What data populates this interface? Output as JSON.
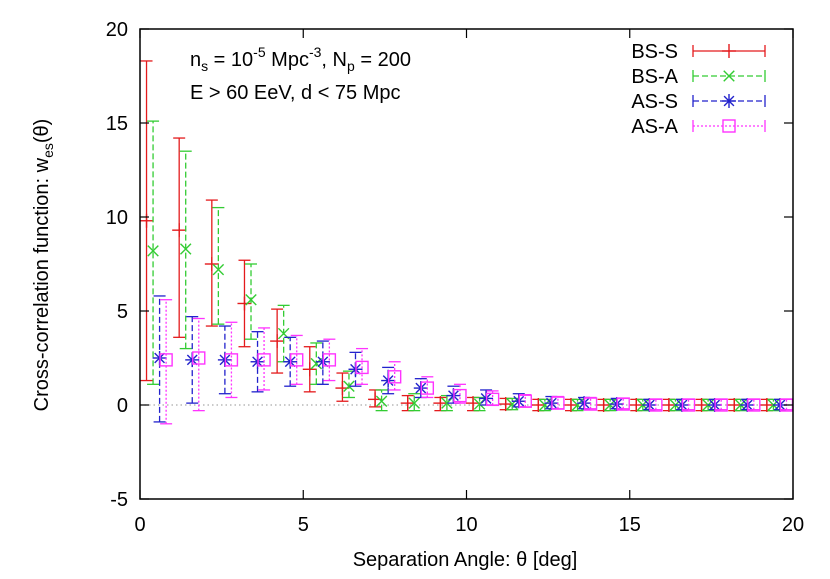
{
  "chart_data": {
    "type": "scatter",
    "xlabel": "Separation Angle: θ [deg]",
    "ylabel": "Cross-correlation function: w_es(θ)",
    "xlim": [
      0,
      20
    ],
    "ylim": [
      -5,
      20
    ],
    "x_ticks": [
      0,
      5,
      10,
      15,
      20
    ],
    "y_ticks": [
      -5,
      0,
      5,
      10,
      15,
      20
    ],
    "grid": false,
    "legend_position": "top-right",
    "annotations": [
      "n_s = 10^-5 Mpc^-3, N_p = 200",
      "E > 60 EeV, d < 75 Mpc"
    ],
    "reference_line": {
      "y": 0,
      "style": "dotted",
      "color": "#aaaaaa"
    },
    "series": [
      {
        "name": "BS-S",
        "color": "#e41a1c",
        "marker": "plus",
        "line": "solid",
        "points": [
          {
            "x": 0.2,
            "y": 9.8,
            "lo": 1.3,
            "hi": 18.3
          },
          {
            "x": 1.2,
            "y": 9.3,
            "lo": 3.6,
            "hi": 14.2
          },
          {
            "x": 2.2,
            "y": 7.5,
            "lo": 4.2,
            "hi": 10.9
          },
          {
            "x": 3.2,
            "y": 5.4,
            "lo": 3.1,
            "hi": 7.7
          },
          {
            "x": 4.2,
            "y": 3.4,
            "lo": 1.7,
            "hi": 5.1
          },
          {
            "x": 5.2,
            "y": 1.9,
            "lo": 0.7,
            "hi": 3.1
          },
          {
            "x": 6.2,
            "y": 0.9,
            "lo": 0.2,
            "hi": 1.7
          },
          {
            "x": 7.2,
            "y": 0.3,
            "lo": -0.1,
            "hi": 0.8
          },
          {
            "x": 8.2,
            "y": 0.1,
            "lo": -0.3,
            "hi": 0.5
          },
          {
            "x": 9.2,
            "y": 0.1,
            "lo": -0.3,
            "hi": 0.4
          },
          {
            "x": 10.2,
            "y": 0.1,
            "lo": -0.3,
            "hi": 0.4
          },
          {
            "x": 11.2,
            "y": 0.05,
            "lo": -0.25,
            "hi": 0.35
          },
          {
            "x": 12.2,
            "y": 0.0,
            "lo": -0.3,
            "hi": 0.3
          },
          {
            "x": 13.2,
            "y": 0.0,
            "lo": -0.3,
            "hi": 0.3
          },
          {
            "x": 14.2,
            "y": 0.0,
            "lo": -0.3,
            "hi": 0.3
          },
          {
            "x": 15.2,
            "y": 0.0,
            "lo": -0.3,
            "hi": 0.3
          },
          {
            "x": 16.2,
            "y": 0.0,
            "lo": -0.3,
            "hi": 0.3
          },
          {
            "x": 17.2,
            "y": 0.0,
            "lo": -0.3,
            "hi": 0.3
          },
          {
            "x": 18.2,
            "y": 0.0,
            "lo": -0.3,
            "hi": 0.3
          },
          {
            "x": 19.2,
            "y": 0.0,
            "lo": -0.3,
            "hi": 0.3
          }
        ]
      },
      {
        "name": "BS-A",
        "color": "#33cc33",
        "marker": "cross",
        "line": "dashed",
        "points": [
          {
            "x": 0.4,
            "y": 8.2,
            "lo": 1.1,
            "hi": 15.1
          },
          {
            "x": 1.4,
            "y": 8.3,
            "lo": 3.0,
            "hi": 13.5
          },
          {
            "x": 2.4,
            "y": 7.2,
            "lo": 4.3,
            "hi": 10.5
          },
          {
            "x": 3.4,
            "y": 5.6,
            "lo": 3.5,
            "hi": 7.5
          },
          {
            "x": 4.4,
            "y": 3.8,
            "lo": 2.3,
            "hi": 5.3
          },
          {
            "x": 5.4,
            "y": 2.2,
            "lo": 1.1,
            "hi": 3.3
          },
          {
            "x": 6.4,
            "y": 1.0,
            "lo": 0.4,
            "hi": 1.8
          },
          {
            "x": 7.4,
            "y": 0.2,
            "lo": -0.3,
            "hi": 0.8
          },
          {
            "x": 8.4,
            "y": 0.1,
            "lo": -0.3,
            "hi": 0.6
          },
          {
            "x": 9.4,
            "y": 0.1,
            "lo": -0.3,
            "hi": 0.5
          },
          {
            "x": 10.4,
            "y": 0.05,
            "lo": -0.3,
            "hi": 0.4
          },
          {
            "x": 11.4,
            "y": 0.05,
            "lo": -0.25,
            "hi": 0.35
          },
          {
            "x": 12.4,
            "y": 0.0,
            "lo": -0.3,
            "hi": 0.3
          },
          {
            "x": 13.4,
            "y": 0.0,
            "lo": -0.3,
            "hi": 0.3
          },
          {
            "x": 14.4,
            "y": 0.0,
            "lo": -0.3,
            "hi": 0.3
          },
          {
            "x": 15.4,
            "y": 0.0,
            "lo": -0.3,
            "hi": 0.3
          },
          {
            "x": 16.4,
            "y": 0.0,
            "lo": -0.3,
            "hi": 0.3
          },
          {
            "x": 17.4,
            "y": 0.0,
            "lo": -0.3,
            "hi": 0.3
          },
          {
            "x": 18.4,
            "y": 0.0,
            "lo": -0.3,
            "hi": 0.3
          },
          {
            "x": 19.4,
            "y": 0.0,
            "lo": -0.3,
            "hi": 0.3
          }
        ]
      },
      {
        "name": "AS-S",
        "color": "#2222cc",
        "marker": "star",
        "line": "dashed",
        "points": [
          {
            "x": 0.6,
            "y": 2.5,
            "lo": -0.9,
            "hi": 5.8
          },
          {
            "x": 1.6,
            "y": 2.4,
            "lo": 0.1,
            "hi": 4.7
          },
          {
            "x": 2.6,
            "y": 2.4,
            "lo": 0.6,
            "hi": 4.2
          },
          {
            "x": 3.6,
            "y": 2.3,
            "lo": 0.7,
            "hi": 3.9
          },
          {
            "x": 4.6,
            "y": 2.3,
            "lo": 1.0,
            "hi": 3.6
          },
          {
            "x": 5.6,
            "y": 2.3,
            "lo": 1.1,
            "hi": 3.4
          },
          {
            "x": 6.6,
            "y": 1.9,
            "lo": 1.0,
            "hi": 2.8
          },
          {
            "x": 7.6,
            "y": 1.3,
            "lo": 0.6,
            "hi": 2.0
          },
          {
            "x": 8.6,
            "y": 0.9,
            "lo": 0.4,
            "hi": 1.4
          },
          {
            "x": 9.6,
            "y": 0.5,
            "lo": 0.1,
            "hi": 1.0
          },
          {
            "x": 10.6,
            "y": 0.35,
            "lo": 0.0,
            "hi": 0.8
          },
          {
            "x": 11.6,
            "y": 0.2,
            "lo": -0.1,
            "hi": 0.6
          },
          {
            "x": 12.6,
            "y": 0.1,
            "lo": -0.2,
            "hi": 0.45
          },
          {
            "x": 13.6,
            "y": 0.1,
            "lo": -0.2,
            "hi": 0.4
          },
          {
            "x": 14.6,
            "y": 0.05,
            "lo": -0.2,
            "hi": 0.35
          },
          {
            "x": 15.6,
            "y": 0.0,
            "lo": -0.25,
            "hi": 0.3
          },
          {
            "x": 16.6,
            "y": 0.0,
            "lo": -0.25,
            "hi": 0.3
          },
          {
            "x": 17.6,
            "y": 0.0,
            "lo": -0.25,
            "hi": 0.3
          },
          {
            "x": 18.6,
            "y": 0.0,
            "lo": -0.25,
            "hi": 0.3
          },
          {
            "x": 19.6,
            "y": 0.0,
            "lo": -0.25,
            "hi": 0.3
          }
        ]
      },
      {
        "name": "AS-A",
        "color": "#ff33ff",
        "marker": "square",
        "line": "dotted",
        "points": [
          {
            "x": 0.8,
            "y": 2.4,
            "lo": -1.0,
            "hi": 5.6
          },
          {
            "x": 1.8,
            "y": 2.5,
            "lo": -0.3,
            "hi": 4.6
          },
          {
            "x": 2.8,
            "y": 2.4,
            "lo": 0.4,
            "hi": 4.4
          },
          {
            "x": 3.8,
            "y": 2.4,
            "lo": 0.8,
            "hi": 4.1
          },
          {
            "x": 4.8,
            "y": 2.4,
            "lo": 1.1,
            "hi": 3.7
          },
          {
            "x": 5.8,
            "y": 2.4,
            "lo": 1.3,
            "hi": 3.5
          },
          {
            "x": 6.8,
            "y": 2.0,
            "lo": 1.1,
            "hi": 3.0
          },
          {
            "x": 7.8,
            "y": 1.5,
            "lo": 0.8,
            "hi": 2.3
          },
          {
            "x": 8.8,
            "y": 0.9,
            "lo": 0.4,
            "hi": 1.5
          },
          {
            "x": 9.8,
            "y": 0.5,
            "lo": 0.1,
            "hi": 1.1
          },
          {
            "x": 10.8,
            "y": 0.3,
            "lo": 0.0,
            "hi": 0.75
          },
          {
            "x": 11.8,
            "y": 0.2,
            "lo": -0.1,
            "hi": 0.55
          },
          {
            "x": 12.8,
            "y": 0.1,
            "lo": -0.2,
            "hi": 0.45
          },
          {
            "x": 13.8,
            "y": 0.05,
            "lo": -0.2,
            "hi": 0.4
          },
          {
            "x": 14.8,
            "y": 0.05,
            "lo": -0.2,
            "hi": 0.35
          },
          {
            "x": 15.8,
            "y": 0.0,
            "lo": -0.25,
            "hi": 0.3
          },
          {
            "x": 16.8,
            "y": 0.0,
            "lo": -0.25,
            "hi": 0.3
          },
          {
            "x": 17.8,
            "y": 0.0,
            "lo": -0.25,
            "hi": 0.3
          },
          {
            "x": 18.8,
            "y": 0.0,
            "lo": -0.25,
            "hi": 0.3
          },
          {
            "x": 19.8,
            "y": 0.0,
            "lo": -0.25,
            "hi": 0.3
          }
        ]
      }
    ]
  }
}
